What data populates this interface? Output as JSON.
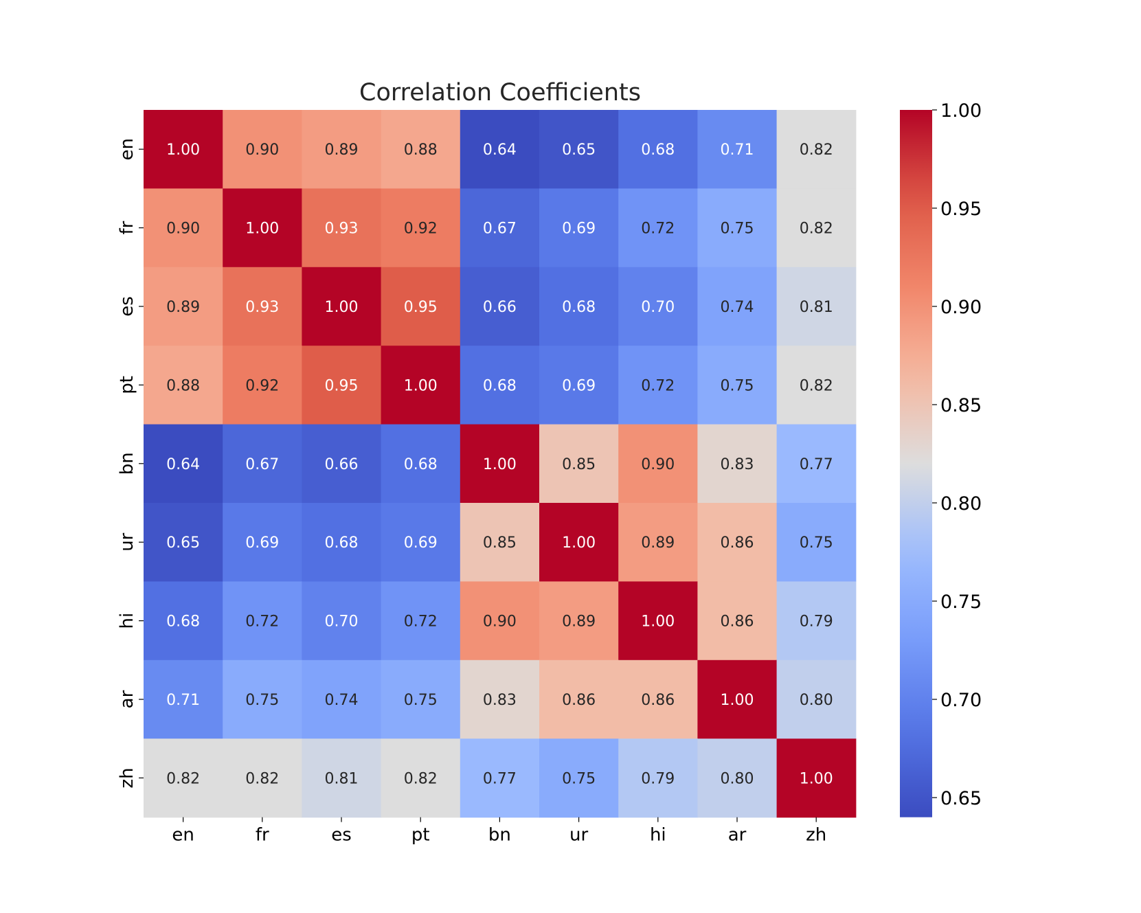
{
  "chart_data": {
    "type": "heatmap",
    "title": "Correlation Coefficients",
    "xlabel": "",
    "ylabel": "",
    "x_categories": [
      "en",
      "fr",
      "es",
      "pt",
      "bn",
      "ur",
      "hi",
      "ar",
      "zh"
    ],
    "y_categories": [
      "en",
      "fr",
      "es",
      "pt",
      "bn",
      "ur",
      "hi",
      "ar",
      "zh"
    ],
    "values": [
      [
        1.0,
        0.9,
        0.89,
        0.88,
        0.64,
        0.65,
        0.68,
        0.71,
        0.82
      ],
      [
        0.9,
        1.0,
        0.93,
        0.92,
        0.67,
        0.69,
        0.72,
        0.75,
        0.82
      ],
      [
        0.89,
        0.93,
        1.0,
        0.95,
        0.66,
        0.68,
        0.7,
        0.74,
        0.81
      ],
      [
        0.88,
        0.92,
        0.95,
        1.0,
        0.68,
        0.69,
        0.72,
        0.75,
        0.82
      ],
      [
        0.64,
        0.67,
        0.66,
        0.68,
        1.0,
        0.85,
        0.9,
        0.83,
        0.77
      ],
      [
        0.65,
        0.69,
        0.68,
        0.69,
        0.85,
        1.0,
        0.89,
        0.86,
        0.75
      ],
      [
        0.68,
        0.72,
        0.7,
        0.72,
        0.9,
        0.89,
        1.0,
        0.86,
        0.79
      ],
      [
        0.71,
        0.75,
        0.74,
        0.75,
        0.83,
        0.86,
        0.86,
        1.0,
        0.8
      ],
      [
        0.82,
        0.82,
        0.81,
        0.82,
        0.77,
        0.75,
        0.79,
        0.8,
        1.0
      ]
    ],
    "value_format": "0.00",
    "colormap": "coolwarm",
    "vmin": 0.64,
    "vmax": 1.0,
    "colorbar": {
      "ticks": [
        0.65,
        0.7,
        0.75,
        0.8,
        0.85,
        0.9,
        0.95,
        1.0
      ],
      "tick_labels": [
        "0.65",
        "0.70",
        "0.75",
        "0.80",
        "0.85",
        "0.90",
        "0.95",
        "1.00"
      ],
      "placement": "right"
    },
    "grid": false,
    "annotated": true
  }
}
